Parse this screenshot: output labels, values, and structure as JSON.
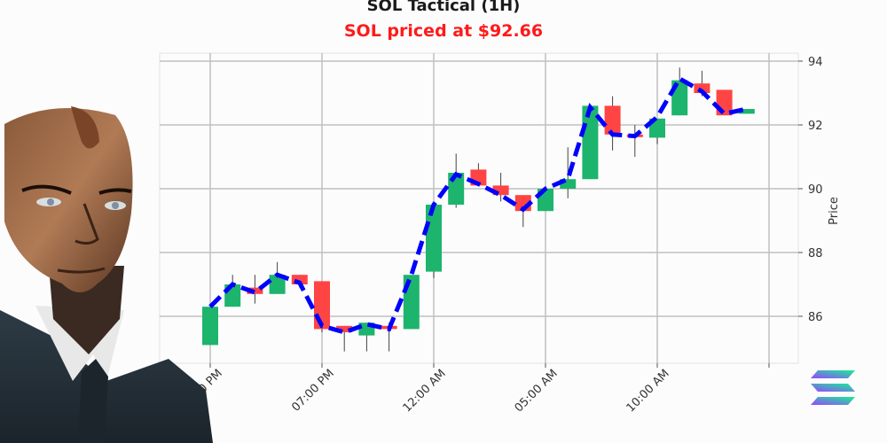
{
  "header": {
    "title": "SOL Tactical (1H)",
    "subtitle": "SOL priced at $92.66"
  },
  "colors": {
    "up": "#1db46e",
    "down": "#ff4444",
    "trend": "#0000ff",
    "subtitle": "#ff1a1a",
    "grid": "#c0c0c0"
  },
  "decorations": {
    "portrait": "android-businessman-portrait",
    "logo": "solana-logo-icon"
  },
  "chart_data": {
    "type": "candlestick",
    "title": "SOL Tactical (1H)",
    "subtitle": "SOL priced at $92.66",
    "xlabel": "",
    "ylabel": "Price",
    "ylim": [
      85.0,
      94.3
    ],
    "yticks": [
      86,
      88,
      90,
      92,
      94
    ],
    "xtick_labels": [
      "02:00 PM",
      "07:00 PM",
      "12:00 AM",
      "05:00 AM",
      "10:00 AM"
    ],
    "xtick_candle_index": [
      0,
      5,
      10,
      15,
      20
    ],
    "grid": true,
    "y_axis_side": "right",
    "candles": [
      {
        "o": 85.1,
        "h": 86.3,
        "l": 85.1,
        "c": 86.3
      },
      {
        "o": 86.3,
        "h": 87.3,
        "l": 86.3,
        "c": 87.0
      },
      {
        "o": 86.9,
        "h": 87.3,
        "l": 86.4,
        "c": 86.7
      },
      {
        "o": 86.7,
        "h": 87.7,
        "l": 86.7,
        "c": 87.3
      },
      {
        "o": 87.3,
        "h": 87.3,
        "l": 86.9,
        "c": 87.0
      },
      {
        "o": 87.1,
        "h": 87.1,
        "l": 85.5,
        "c": 85.6
      },
      {
        "o": 85.7,
        "h": 85.7,
        "l": 84.9,
        "c": 85.5
      },
      {
        "o": 85.4,
        "h": 85.8,
        "l": 84.9,
        "c": 85.8
      },
      {
        "o": 85.7,
        "h": 85.8,
        "l": 84.9,
        "c": 85.6
      },
      {
        "o": 85.6,
        "h": 87.3,
        "l": 85.6,
        "c": 87.3
      },
      {
        "o": 87.4,
        "h": 89.5,
        "l": 87.2,
        "c": 89.5
      },
      {
        "o": 89.5,
        "h": 91.1,
        "l": 89.4,
        "c": 90.5
      },
      {
        "o": 90.6,
        "h": 90.8,
        "l": 90.1,
        "c": 90.1
      },
      {
        "o": 90.1,
        "h": 90.5,
        "l": 89.6,
        "c": 89.8
      },
      {
        "o": 89.8,
        "h": 89.8,
        "l": 88.8,
        "c": 89.3
      },
      {
        "o": 89.3,
        "h": 90.0,
        "l": 89.3,
        "c": 90.0
      },
      {
        "o": 90.0,
        "h": 91.3,
        "l": 89.7,
        "c": 90.3
      },
      {
        "o": 90.3,
        "h": 92.6,
        "l": 90.3,
        "c": 92.6
      },
      {
        "o": 92.6,
        "h": 92.9,
        "l": 91.2,
        "c": 91.7
      },
      {
        "o": 91.7,
        "h": 92.0,
        "l": 91.0,
        "c": 91.65
      },
      {
        "o": 91.6,
        "h": 92.2,
        "l": 91.4,
        "c": 92.2
      },
      {
        "o": 92.3,
        "h": 93.8,
        "l": 92.3,
        "c": 93.4
      },
      {
        "o": 93.3,
        "h": 93.7,
        "l": 92.9,
        "c": 93.0
      },
      {
        "o": 93.1,
        "h": 93.1,
        "l": 92.3,
        "c": 92.3
      },
      {
        "o": 92.35,
        "h": 92.5,
        "l": 92.35,
        "c": 92.5
      }
    ],
    "trend_line": {
      "style": "dashed",
      "color": "#0000ff",
      "values": [
        86.3,
        87.0,
        86.75,
        87.3,
        87.05,
        85.7,
        85.5,
        85.75,
        85.6,
        87.3,
        89.5,
        90.45,
        90.15,
        89.8,
        89.35,
        90.0,
        90.3,
        92.55,
        91.7,
        91.65,
        92.25,
        93.45,
        93.05,
        92.35,
        92.5
      ]
    }
  }
}
